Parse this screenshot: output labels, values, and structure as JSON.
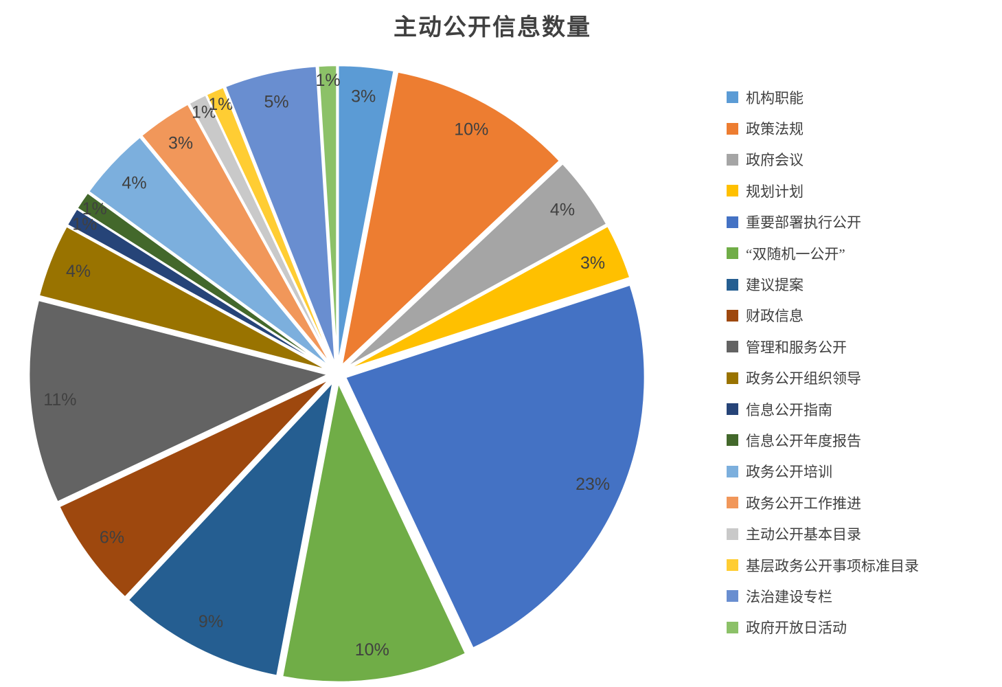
{
  "title": "主动公开信息数量",
  "text_color": "#404040",
  "background_color": "#ffffff",
  "chart_data": {
    "type": "pie",
    "title": "主动公开信息数量",
    "unit": "%",
    "start_angle_deg": 0,
    "direction": "clockwise",
    "legend_position": "right",
    "exploded": true,
    "slice_border_color": "#ffffff",
    "slices": [
      {
        "label": "机构职能",
        "value": 3,
        "color": "#5B9BD5"
      },
      {
        "label": "政策法规",
        "value": 10,
        "color": "#ED7D31"
      },
      {
        "label": "政府会议",
        "value": 4,
        "color": "#A5A5A5"
      },
      {
        "label": "规划计划",
        "value": 3,
        "color": "#FFC000"
      },
      {
        "label": "重要部署执行公开",
        "value": 23,
        "color": "#4472C4"
      },
      {
        "label": "“双随机一公开”",
        "value": 10,
        "color": "#70AD47"
      },
      {
        "label": "建议提案",
        "value": 9,
        "color": "#255E91"
      },
      {
        "label": "财政信息",
        "value": 6,
        "color": "#9E480E"
      },
      {
        "label": "管理和服务公开",
        "value": 11,
        "color": "#636363"
      },
      {
        "label": "政务公开组织领导",
        "value": 4,
        "color": "#997300"
      },
      {
        "label": "信息公开指南",
        "value": 1,
        "color": "#264478"
      },
      {
        "label": "信息公开年度报告",
        "value": 1,
        "color": "#43682B"
      },
      {
        "label": "政务公开培训",
        "value": 4,
        "color": "#7CAFDD"
      },
      {
        "label": "政务公开工作推进",
        "value": 3,
        "color": "#F1975A"
      },
      {
        "label": "主动公开基本目录",
        "value": 1,
        "color": "#C9C9C9"
      },
      {
        "label": "基层政务公开事项标准目录",
        "value": 1,
        "color": "#FFCD33"
      },
      {
        "label": "法治建设专栏",
        "value": 5,
        "color": "#698ED0"
      },
      {
        "label": "政府开放日活动",
        "value": 1,
        "color": "#8CC168"
      }
    ]
  }
}
